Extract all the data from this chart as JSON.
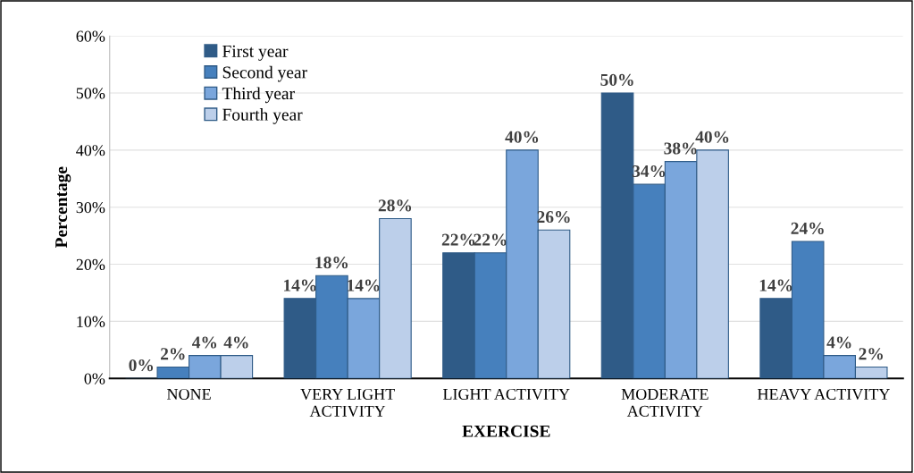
{
  "chart_data": {
    "type": "bar",
    "xlabel": "EXERCISE",
    "ylabel": "Percentage",
    "categories": [
      "NONE",
      "VERY LIGHT\nACTIVITY",
      "LIGHT ACTIVITY",
      "MODERATE\nACTIVITY",
      "HEAVY ACTIVITY"
    ],
    "series": [
      {
        "name": "First year",
        "color": "#2f5b87",
        "values": [
          0,
          14,
          22,
          50,
          14
        ],
        "value_labels": [
          "0%",
          "14%",
          "22%",
          "50%",
          "14%"
        ]
      },
      {
        "name": "Second year",
        "color": "#4680bd",
        "values": [
          2,
          18,
          22,
          34,
          24
        ],
        "value_labels": [
          "2%",
          "18%",
          "22%",
          "34%",
          "24%"
        ]
      },
      {
        "name": "Third year",
        "color": "#7aa6dc",
        "values": [
          4,
          14,
          40,
          38,
          4
        ],
        "value_labels": [
          "4%",
          "14%",
          "40%",
          "38%",
          "4%"
        ]
      },
      {
        "name": "Fourth year",
        "color": "#bccfea",
        "values": [
          4,
          28,
          26,
          40,
          2
        ],
        "value_labels": [
          "4%",
          "28%",
          "26%",
          "40%",
          "2%"
        ]
      }
    ],
    "ylim": [
      0,
      60
    ],
    "yticks": [
      {
        "value": 0,
        "label": "0%"
      },
      {
        "value": 10,
        "label": "10%"
      },
      {
        "value": 20,
        "label": "20%"
      },
      {
        "value": 30,
        "label": "30%"
      },
      {
        "value": 40,
        "label": "40%"
      },
      {
        "value": 50,
        "label": "50%"
      },
      {
        "value": 60,
        "label": "60%"
      }
    ],
    "grid": "y",
    "legend": "top left"
  }
}
